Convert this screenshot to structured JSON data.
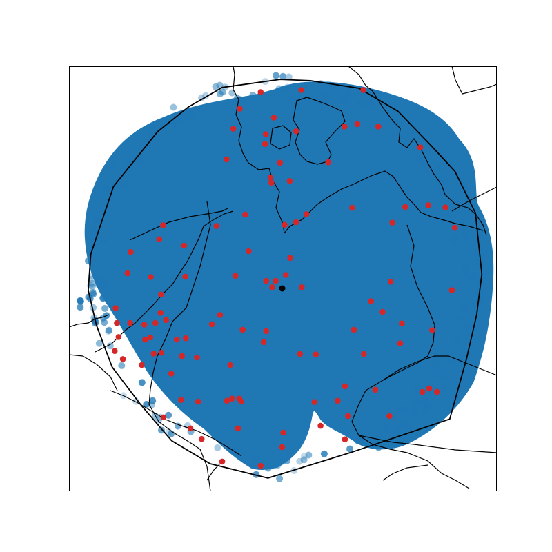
{
  "figure": {
    "background": "#ffffff",
    "frame_color": "#000000"
  },
  "map": {
    "type": "scatter-map",
    "grid": false,
    "colors": {
      "coverage": "#1f77b4",
      "stations": "#d62728",
      "center": "#000000",
      "hull": "#000000",
      "coastline": "#000000"
    },
    "center": {
      "name": "center-point"
    },
    "stations_count": 110,
    "stations": [
      [
        0.448,
        0.061
      ],
      [
        0.543,
        0.056
      ],
      [
        0.688,
        0.056
      ],
      [
        0.399,
        0.1
      ],
      [
        0.479,
        0.121
      ],
      [
        0.384,
        0.147
      ],
      [
        0.46,
        0.16
      ],
      [
        0.531,
        0.153
      ],
      [
        0.644,
        0.142
      ],
      [
        0.674,
        0.136
      ],
      [
        0.723,
        0.142
      ],
      [
        0.821,
        0.191
      ],
      [
        0.458,
        0.183
      ],
      [
        0.368,
        0.219
      ],
      [
        0.493,
        0.227
      ],
      [
        0.606,
        0.226
      ],
      [
        0.471,
        0.262
      ],
      [
        0.473,
        0.274
      ],
      [
        0.516,
        0.27
      ],
      [
        0.412,
        0.349
      ],
      [
        0.345,
        0.376
      ],
      [
        0.22,
        0.374
      ],
      [
        0.504,
        0.373
      ],
      [
        0.531,
        0.367
      ],
      [
        0.555,
        0.348
      ],
      [
        0.662,
        0.333
      ],
      [
        0.786,
        0.331
      ],
      [
        0.84,
        0.327
      ],
      [
        0.756,
        0.368
      ],
      [
        0.88,
        0.332
      ],
      [
        0.902,
        0.38
      ],
      [
        0.211,
        0.407
      ],
      [
        0.269,
        0.422
      ],
      [
        0.144,
        0.437
      ],
      [
        0.42,
        0.435
      ],
      [
        0.517,
        0.451
      ],
      [
        0.137,
        0.487
      ],
      [
        0.191,
        0.496
      ],
      [
        0.272,
        0.495
      ],
      [
        0.389,
        0.493
      ],
      [
        0.461,
        0.505
      ],
      [
        0.475,
        0.52
      ],
      [
        0.483,
        0.505
      ],
      [
        0.507,
        0.491
      ],
      [
        0.544,
        0.52
      ],
      [
        0.706,
        0.553
      ],
      [
        0.752,
        0.507
      ],
      [
        0.895,
        0.527
      ],
      [
        0.109,
        0.569
      ],
      [
        0.215,
        0.537
      ],
      [
        0.214,
        0.58
      ],
      [
        0.353,
        0.585
      ],
      [
        0.733,
        0.578
      ],
      [
        0.112,
        0.604
      ],
      [
        0.143,
        0.604
      ],
      [
        0.176,
        0.608
      ],
      [
        0.202,
        0.604
      ],
      [
        0.227,
        0.597
      ],
      [
        0.334,
        0.607
      ],
      [
        0.406,
        0.62
      ],
      [
        0.461,
        0.623
      ],
      [
        0.666,
        0.62
      ],
      [
        0.778,
        0.605
      ],
      [
        0.849,
        0.621
      ],
      [
        0.116,
        0.637
      ],
      [
        0.178,
        0.643
      ],
      [
        0.19,
        0.638
      ],
      [
        0.252,
        0.643
      ],
      [
        0.273,
        0.64
      ],
      [
        0.455,
        0.649
      ],
      [
        0.774,
        0.652
      ],
      [
        0.107,
        0.67
      ],
      [
        0.126,
        0.689
      ],
      [
        0.198,
        0.676
      ],
      [
        0.216,
        0.674
      ],
      [
        0.264,
        0.682
      ],
      [
        0.299,
        0.685
      ],
      [
        0.377,
        0.703
      ],
      [
        0.54,
        0.677
      ],
      [
        0.577,
        0.678
      ],
      [
        0.689,
        0.677
      ],
      [
        0.17,
        0.703
      ],
      [
        0.239,
        0.723
      ],
      [
        0.645,
        0.753
      ],
      [
        0.716,
        0.761
      ],
      [
        0.826,
        0.766
      ],
      [
        0.842,
        0.758
      ],
      [
        0.86,
        0.766
      ],
      [
        0.262,
        0.785
      ],
      [
        0.302,
        0.789
      ],
      [
        0.369,
        0.787
      ],
      [
        0.381,
        0.782
      ],
      [
        0.398,
        0.782
      ],
      [
        0.403,
        0.789
      ],
      [
        0.574,
        0.79
      ],
      [
        0.628,
        0.787
      ],
      [
        0.652,
        0.823
      ],
      [
        0.749,
        0.823
      ],
      [
        0.221,
        0.826
      ],
      [
        0.284,
        0.852
      ],
      [
        0.395,
        0.852
      ],
      [
        0.588,
        0.846
      ],
      [
        0.501,
        0.862
      ],
      [
        0.31,
        0.877
      ],
      [
        0.498,
        0.896
      ],
      [
        0.645,
        0.878
      ],
      [
        0.358,
        0.93
      ],
      [
        0.448,
        0.94
      ]
    ],
    "hull": [
      [
        0.493,
        0.031
      ],
      [
        0.564,
        0.034
      ],
      [
        0.678,
        0.052
      ],
      [
        0.769,
        0.106
      ],
      [
        0.845,
        0.185
      ],
      [
        0.902,
        0.247
      ],
      [
        0.95,
        0.345
      ],
      [
        0.965,
        0.489
      ],
      [
        0.953,
        0.584
      ],
      [
        0.929,
        0.689
      ],
      [
        0.89,
        0.83
      ],
      [
        0.661,
        0.908
      ],
      [
        0.465,
        0.969
      ],
      [
        0.33,
        0.935
      ],
      [
        0.24,
        0.881
      ],
      [
        0.169,
        0.798
      ],
      [
        0.101,
        0.708
      ],
      [
        0.064,
        0.609
      ],
      [
        0.045,
        0.527
      ],
      [
        0.051,
        0.442
      ],
      [
        0.104,
        0.283
      ],
      [
        0.207,
        0.154
      ],
      [
        0.279,
        0.096
      ],
      [
        0.358,
        0.05
      ],
      [
        0.493,
        0.031
      ]
    ]
  }
}
